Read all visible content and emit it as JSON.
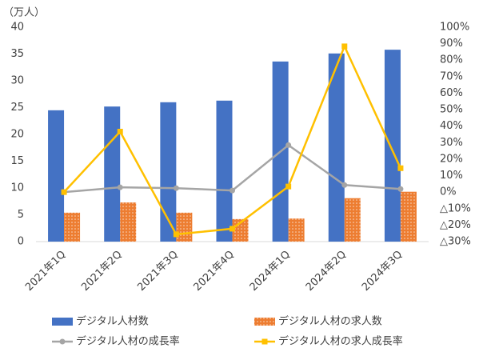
{
  "chart_data": {
    "type": "bar",
    "y_label": "（万人）",
    "categories": [
      "2021年1Q",
      "2021年2Q",
      "2021年3Q",
      "2021年4Q",
      "2024年1Q",
      "2024年2Q",
      "2024年3Q"
    ],
    "series": [
      {
        "name": "デジタル人材数",
        "type": "bar",
        "color": "#4472c4",
        "values": [
          24.5,
          25.2,
          26.0,
          26.3,
          33.6,
          35.1,
          35.8
        ]
      },
      {
        "name": "デジタル人材の求人数",
        "type": "bar",
        "color": "#ed7d31",
        "pattern": "dots",
        "values": [
          5.4,
          7.3,
          5.4,
          4.2,
          4.3,
          8.1,
          9.3
        ]
      },
      {
        "name": "デジタル人材の成長率",
        "type": "line",
        "axis": "y2",
        "color": "#a5a5a5",
        "marker": "circle",
        "values": [
          0.0,
          2.9,
          2.4,
          1.0,
          28.5,
          4.3,
          1.9
        ]
      },
      {
        "name": "デジタル人材の求人成長率",
        "type": "line",
        "axis": "y2",
        "color": "#ffc000",
        "marker": "square",
        "values": [
          0.0,
          36.7,
          -25.6,
          -22.2,
          3.4,
          88.4,
          14.5
        ]
      }
    ],
    "ylim": [
      0,
      40
    ],
    "yticks": [
      0,
      5,
      10,
      15,
      20,
      25,
      30,
      35,
      40
    ],
    "y2lim": [
      -30,
      100
    ],
    "y2ticks": [
      {
        "value": -30,
        "label": "△30%"
      },
      {
        "value": -20,
        "label": "△20%"
      },
      {
        "value": -10,
        "label": "△10%"
      },
      {
        "value": 0,
        "label": "0%"
      },
      {
        "value": 10,
        "label": "10%"
      },
      {
        "value": 20,
        "label": "20%"
      },
      {
        "value": 30,
        "label": "30%"
      },
      {
        "value": 40,
        "label": "40%"
      },
      {
        "value": 50,
        "label": "50%"
      },
      {
        "value": 60,
        "label": "60%"
      },
      {
        "value": 70,
        "label": "70%"
      },
      {
        "value": 80,
        "label": "80%"
      },
      {
        "value": 90,
        "label": "90%"
      },
      {
        "value": 100,
        "label": "100%"
      }
    ],
    "grid": false
  }
}
